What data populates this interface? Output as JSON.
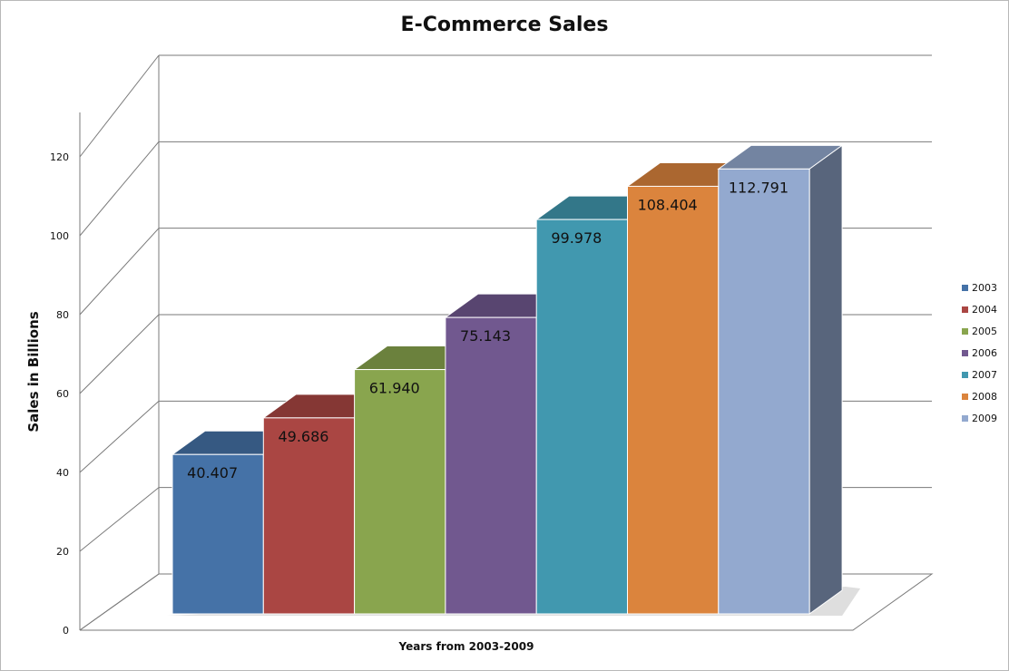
{
  "chart_data": {
    "type": "bar",
    "title": "E-Commerce Sales",
    "xlabel": "Years from 2003-2009",
    "ylabel": "Sales in Billions",
    "ylim": [
      0,
      120
    ],
    "yticks": [
      "0",
      "20",
      "40",
      "60",
      "80",
      "100",
      "120"
    ],
    "grid": true,
    "legend_position": "right",
    "three_d": true,
    "categories": [
      "2003",
      "2004",
      "2005",
      "2006",
      "2007",
      "2008",
      "2009"
    ],
    "values": [
      40.407,
      49.686,
      61.94,
      75.143,
      99.978,
      108.404,
      112.791
    ],
    "data_labels": [
      "40.407",
      "49.686",
      "61.940",
      "75.143",
      "99.978",
      "108.404",
      "112.791"
    ],
    "colors": [
      "#4572a7",
      "#aa4643",
      "#89a54e",
      "#71588f",
      "#4198af",
      "#db843d",
      "#93a9cf"
    ]
  }
}
